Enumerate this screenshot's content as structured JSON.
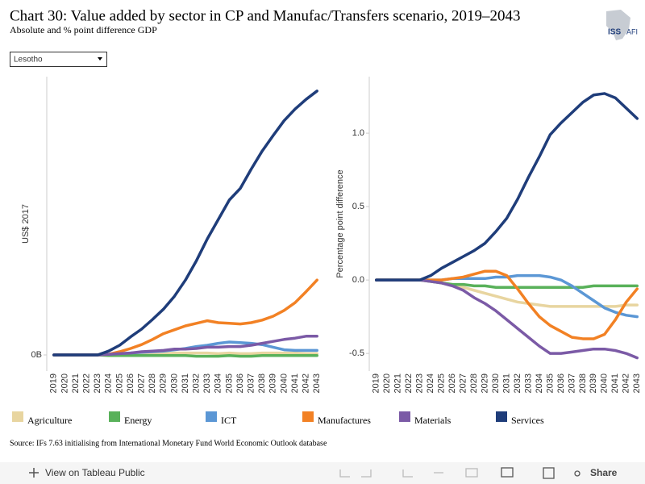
{
  "header": {
    "title": "Chart 30: Value added by sector in CP and Manufac/Transfers scenario, 2019–2043",
    "subtitle": "Absolute and % point difference GDP",
    "logo": [
      "ISS",
      "AFI"
    ]
  },
  "filter": {
    "selected": "Lesotho"
  },
  "source": "Source: IFs 7.63 initialising from International Monetary Fund World Economic Outlook database",
  "toolbar": {
    "view": "View on Tableau Public",
    "share": "Share"
  },
  "chart_data": [
    {
      "type": "line",
      "y_label": "US$ 2017",
      "categories": [
        "2019",
        "2020",
        "2021",
        "2022",
        "2023",
        "2024",
        "2025",
        "2026",
        "2027",
        "2028",
        "2029",
        "2030",
        "2031",
        "2032",
        "2033",
        "2034",
        "2035",
        "2036",
        "2037",
        "2038",
        "2039",
        "2040",
        "2041",
        "2042",
        "2043"
      ],
      "ylim": [
        -0.25,
        4.3125
      ],
      "yticks": [
        {
          "value": 0,
          "label": "0B"
        }
      ],
      "series": [
        {
          "name": "Agriculture",
          "color": "#e8d5a0",
          "values": [
            0,
            0,
            0,
            0,
            0,
            0.01,
            0.01,
            0.02,
            0.02,
            0.02,
            0.02,
            0.03,
            0.03,
            0.03,
            0.03,
            0.02,
            0.03,
            0.02,
            0.02,
            0.03,
            0.03,
            0.03,
            0.03,
            0.02,
            0.02
          ]
        },
        {
          "name": "Energy",
          "color": "#59b15a",
          "values": [
            0,
            0,
            0,
            0,
            0,
            -0.01,
            -0.01,
            -0.01,
            -0.01,
            -0.01,
            -0.01,
            -0.01,
            -0.01,
            -0.02,
            -0.02,
            -0.02,
            -0.01,
            -0.02,
            -0.02,
            -0.01,
            -0.01,
            -0.01,
            -0.01,
            -0.01,
            -0.01
          ]
        },
        {
          "name": "ICT",
          "color": "#5b97d5",
          "values": [
            0,
            0,
            0,
            0,
            0,
            0.01,
            0.02,
            0.03,
            0.04,
            0.05,
            0.06,
            0.08,
            0.1,
            0.13,
            0.15,
            0.18,
            0.2,
            0.19,
            0.18,
            0.16,
            0.12,
            0.08,
            0.07,
            0.07,
            0.07
          ]
        },
        {
          "name": "Manufactures",
          "color": "#f28124",
          "values": [
            0,
            0,
            0,
            0,
            0,
            0.01,
            0.05,
            0.1,
            0.16,
            0.24,
            0.33,
            0.39,
            0.45,
            0.49,
            0.53,
            0.5,
            0.49,
            0.48,
            0.5,
            0.54,
            0.6,
            0.69,
            0.81,
            0.98,
            1.16
          ]
        },
        {
          "name": "Materials",
          "color": "#7b5aa6",
          "values": [
            0,
            0,
            0,
            0,
            0,
            0.01,
            0.02,
            0.03,
            0.05,
            0.06,
            0.07,
            0.09,
            0.09,
            0.1,
            0.12,
            0.12,
            0.13,
            0.13,
            0.15,
            0.18,
            0.21,
            0.24,
            0.26,
            0.29,
            0.29
          ]
        },
        {
          "name": "Services",
          "color": "#1f3d7a",
          "values": [
            0,
            0,
            0,
            0,
            0,
            0.06,
            0.15,
            0.28,
            0.4,
            0.55,
            0.71,
            0.91,
            1.16,
            1.46,
            1.8,
            2.1,
            2.4,
            2.58,
            2.88,
            3.16,
            3.4,
            3.63,
            3.81,
            3.96,
            4.09
          ]
        }
      ]
    },
    {
      "type": "line",
      "y_label": "Percentage point difference",
      "categories": [
        "2019",
        "2020",
        "2021",
        "2022",
        "2023",
        "2024",
        "2025",
        "2026",
        "2027",
        "2028",
        "2029",
        "2030",
        "2031",
        "2032",
        "2033",
        "2034",
        "2035",
        "2036",
        "2037",
        "2038",
        "2039",
        "2040",
        "2041",
        "2042",
        "2043"
      ],
      "ylim": [
        -0.62,
        1.385
      ],
      "yticks": [
        -0.5,
        {
          "value": 0,
          "label": "0.0"
        },
        0.5,
        {
          "value": 1,
          "label": "1.0"
        }
      ],
      "series": [
        {
          "name": "Agriculture",
          "color": "#e8d5a0",
          "values": [
            0,
            0,
            0,
            0,
            0,
            -0.01,
            -0.02,
            -0.03,
            -0.05,
            -0.07,
            -0.09,
            -0.11,
            -0.13,
            -0.15,
            -0.16,
            -0.17,
            -0.18,
            -0.18,
            -0.18,
            -0.18,
            -0.18,
            -0.18,
            -0.18,
            -0.17,
            -0.17
          ]
        },
        {
          "name": "Energy",
          "color": "#59b15a",
          "values": [
            0,
            0,
            0,
            0,
            0,
            -0.01,
            -0.02,
            -0.03,
            -0.03,
            -0.04,
            -0.04,
            -0.05,
            -0.05,
            -0.05,
            -0.05,
            -0.05,
            -0.05,
            -0.05,
            -0.05,
            -0.05,
            -0.04,
            -0.04,
            -0.04,
            -0.04,
            -0.04
          ]
        },
        {
          "name": "ICT",
          "color": "#5b97d5",
          "values": [
            0,
            0,
            0,
            0,
            0,
            0,
            0,
            0.01,
            0.01,
            0.01,
            0.01,
            0.02,
            0.02,
            0.03,
            0.03,
            0.03,
            0.02,
            0,
            -0.04,
            -0.09,
            -0.14,
            -0.19,
            -0.22,
            -0.24,
            -0.25
          ]
        },
        {
          "name": "Manufactures",
          "color": "#f28124",
          "values": [
            0,
            0,
            0,
            0,
            0,
            0,
            0,
            0.01,
            0.02,
            0.04,
            0.06,
            0.06,
            0.03,
            -0.06,
            -0.16,
            -0.25,
            -0.31,
            -0.35,
            -0.39,
            -0.4,
            -0.4,
            -0.37,
            -0.27,
            -0.15,
            -0.06
          ]
        },
        {
          "name": "Materials",
          "color": "#7b5aa6",
          "values": [
            0,
            0,
            0,
            0,
            0,
            -0.01,
            -0.02,
            -0.04,
            -0.07,
            -0.12,
            -0.16,
            -0.21,
            -0.27,
            -0.33,
            -0.39,
            -0.45,
            -0.5,
            -0.5,
            -0.49,
            -0.48,
            -0.47,
            -0.47,
            -0.48,
            -0.5,
            -0.53
          ]
        },
        {
          "name": "Services",
          "color": "#1f3d7a",
          "values": [
            0,
            0,
            0,
            0,
            0,
            0.03,
            0.08,
            0.12,
            0.16,
            0.2,
            0.25,
            0.33,
            0.42,
            0.55,
            0.7,
            0.84,
            0.99,
            1.07,
            1.14,
            1.21,
            1.26,
            1.27,
            1.24,
            1.17,
            1.1
          ]
        }
      ]
    }
  ]
}
